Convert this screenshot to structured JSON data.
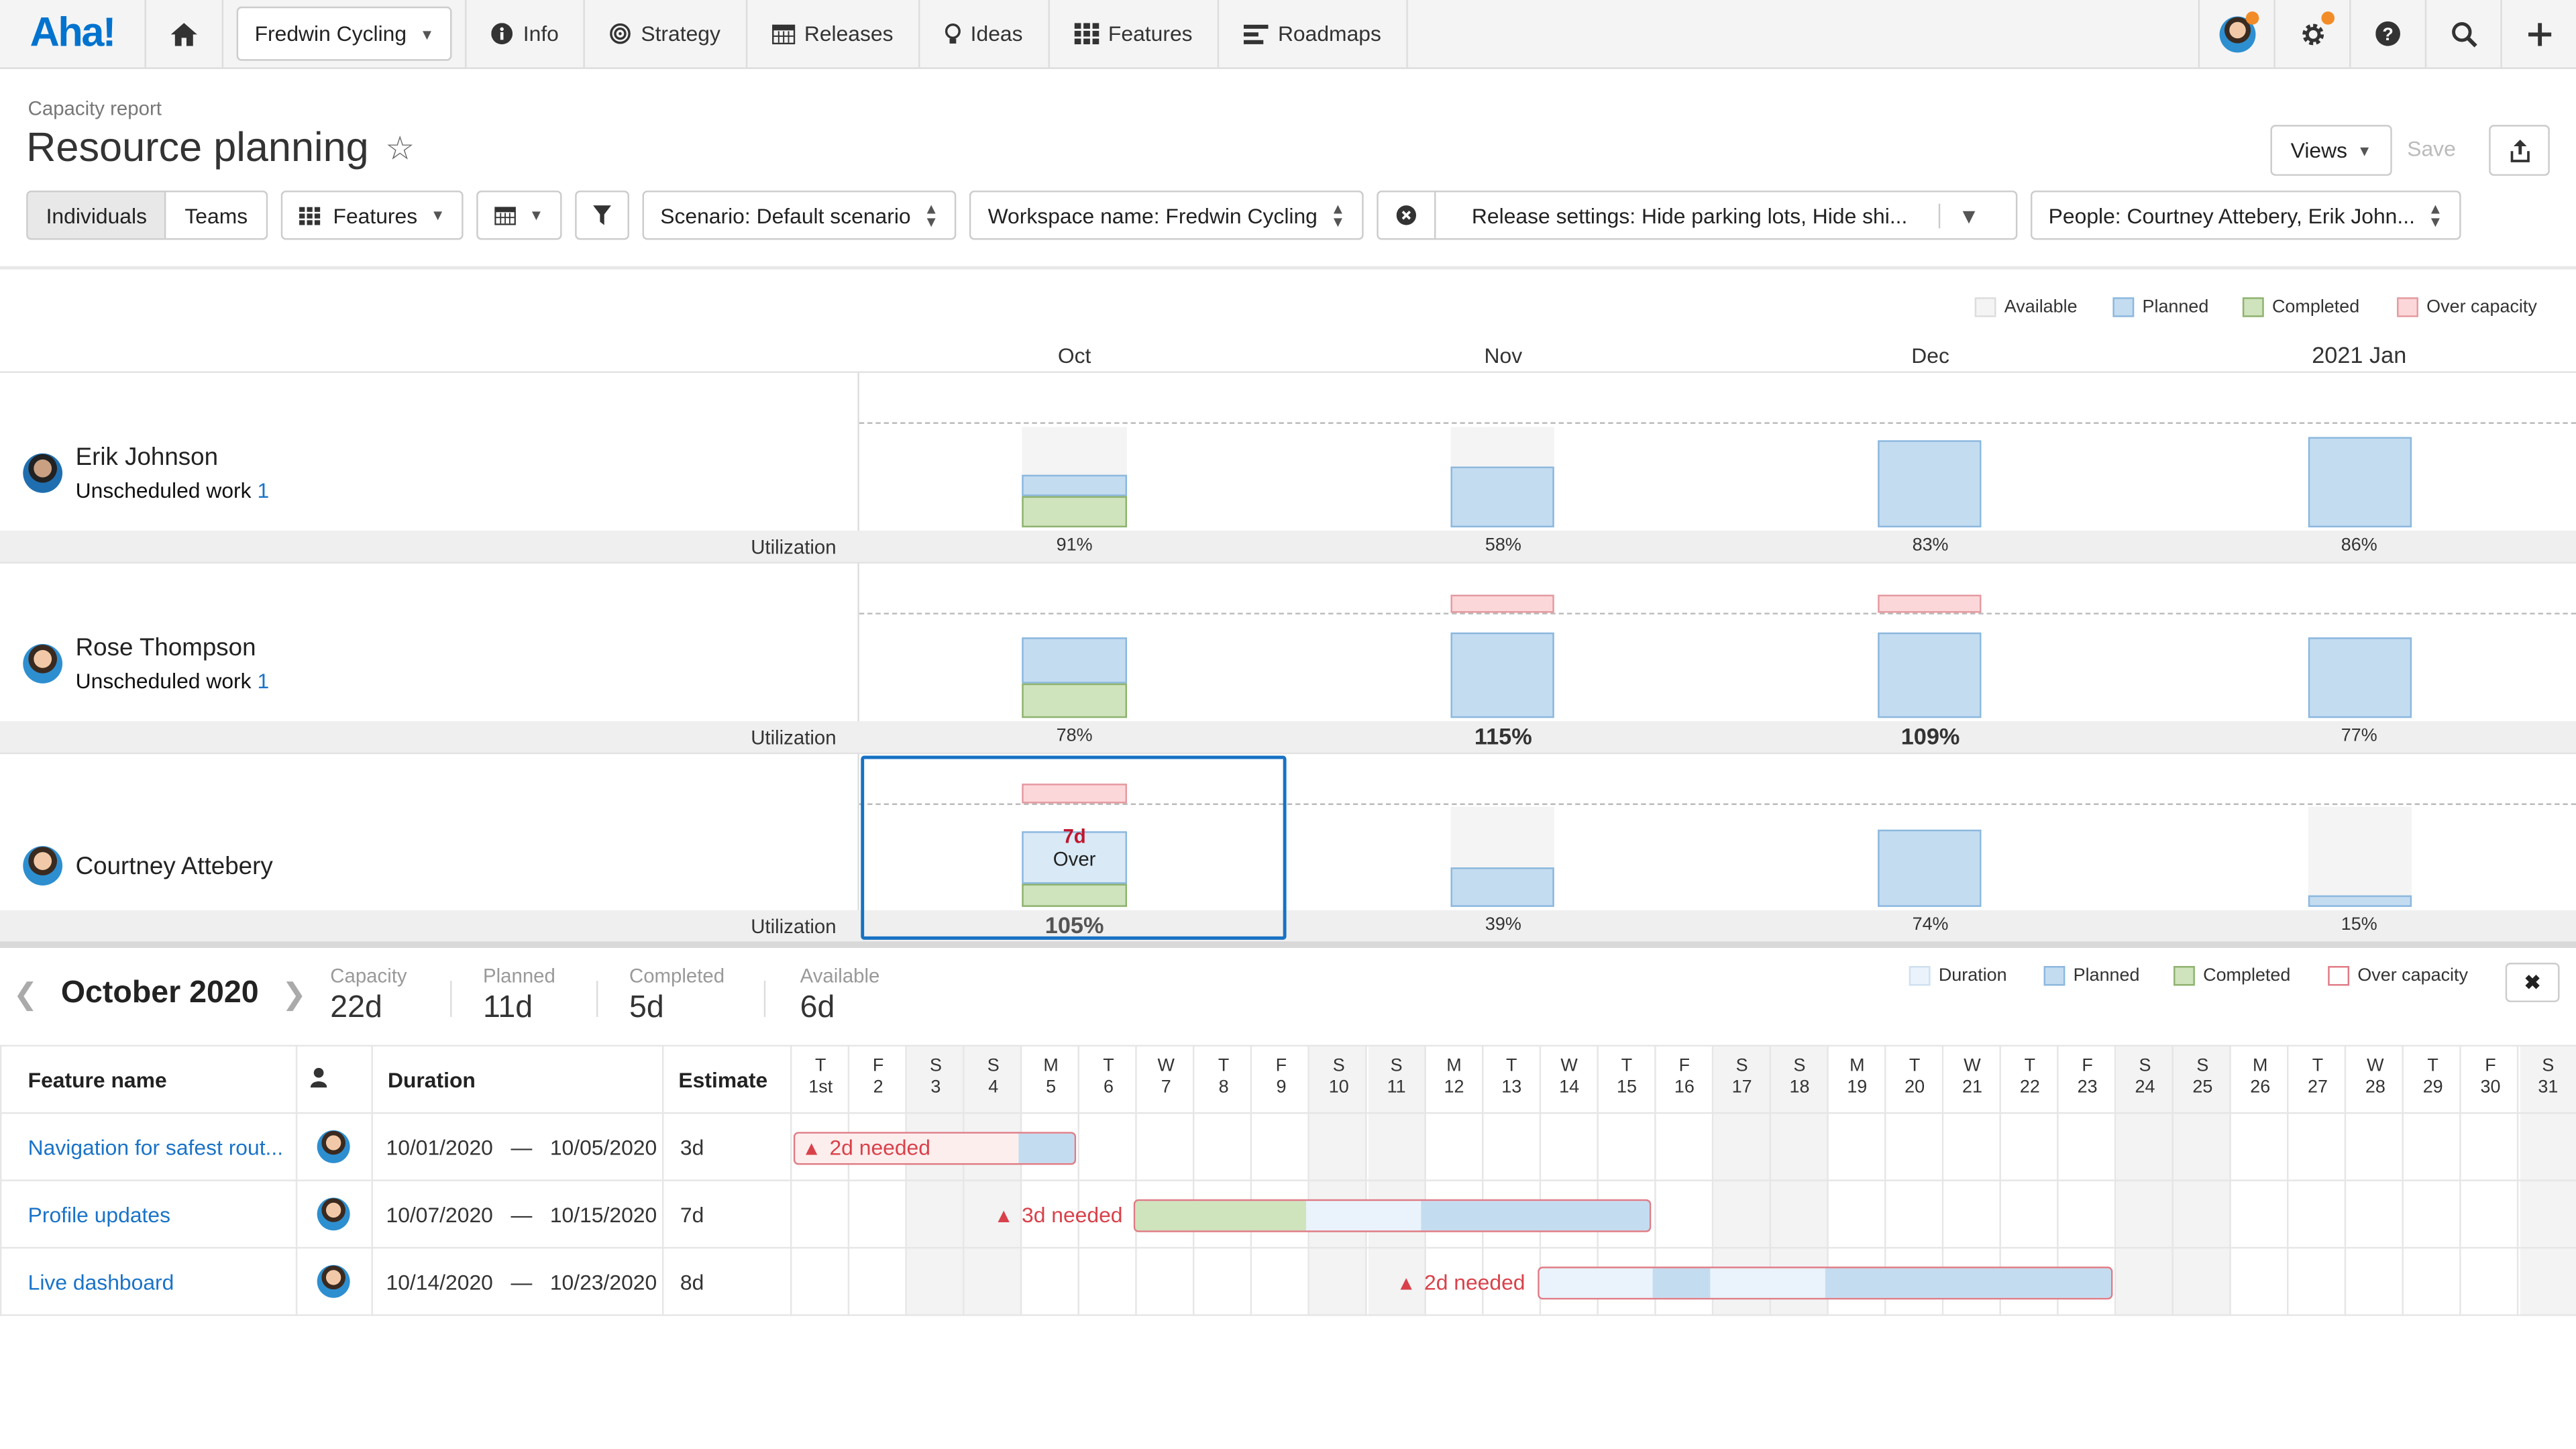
{
  "nav": {
    "logo": "Aha!",
    "workspace": "Fredwin Cycling",
    "items": [
      "Info",
      "Strategy",
      "Releases",
      "Ideas",
      "Features",
      "Roadmaps"
    ]
  },
  "page": {
    "breadcrumb": "Capacity report",
    "title": "Resource planning",
    "views_label": "Views",
    "save_label": "Save"
  },
  "filters": {
    "individuals": "Individuals",
    "teams": "Teams",
    "features": "Features",
    "scenario": "Scenario: Default scenario",
    "workspace": "Workspace name: Fredwin Cycling",
    "release": "Release settings: Hide parking lots, Hide shi...",
    "people": "People: Courtney Attebery, Erik John..."
  },
  "legend_top": {
    "available": "Available",
    "planned": "Planned",
    "completed": "Completed",
    "over": "Over capacity"
  },
  "months": [
    "Oct",
    "Nov",
    "Dec",
    "2021 Jan"
  ],
  "utilization_label": "Utilization",
  "unscheduled_label": "Unscheduled work",
  "people": [
    {
      "name": "Erik Johnson",
      "unscheduled": "1",
      "util": [
        "91%",
        "58%",
        "83%",
        "86%"
      ]
    },
    {
      "name": "Rose Thompson",
      "unscheduled": "1",
      "util": [
        "78%",
        "115%",
        "109%",
        "77%"
      ]
    },
    {
      "name": "Courtney Attebery",
      "util": [
        "105%",
        "39%",
        "74%",
        "15%"
      ]
    }
  ],
  "over_tooltip": {
    "days": "7d",
    "label": "Over"
  },
  "bottom": {
    "month": "October 2020",
    "stats": [
      {
        "label": "Capacity",
        "value": "22d"
      },
      {
        "label": "Planned",
        "value": "11d"
      },
      {
        "label": "Completed",
        "value": "5d"
      },
      {
        "label": "Available",
        "value": "6d"
      }
    ],
    "legend": {
      "duration": "Duration",
      "planned": "Planned",
      "completed": "Completed",
      "over": "Over capacity"
    },
    "headers": {
      "feature": "Feature name",
      "duration": "Duration",
      "estimate": "Estimate"
    },
    "days": [
      {
        "d": "T",
        "n": "1st"
      },
      {
        "d": "F",
        "n": "2"
      },
      {
        "d": "S",
        "n": "3"
      },
      {
        "d": "S",
        "n": "4"
      },
      {
        "d": "M",
        "n": "5"
      },
      {
        "d": "T",
        "n": "6"
      },
      {
        "d": "W",
        "n": "7"
      },
      {
        "d": "T",
        "n": "8"
      },
      {
        "d": "F",
        "n": "9"
      },
      {
        "d": "S",
        "n": "10"
      },
      {
        "d": "S",
        "n": "11"
      },
      {
        "d": "M",
        "n": "12"
      },
      {
        "d": "T",
        "n": "13"
      },
      {
        "d": "W",
        "n": "14"
      },
      {
        "d": "T",
        "n": "15"
      },
      {
        "d": "F",
        "n": "16"
      },
      {
        "d": "S",
        "n": "17"
      },
      {
        "d": "S",
        "n": "18"
      },
      {
        "d": "M",
        "n": "19"
      },
      {
        "d": "T",
        "n": "20"
      },
      {
        "d": "W",
        "n": "21"
      },
      {
        "d": "T",
        "n": "22"
      },
      {
        "d": "F",
        "n": "23"
      },
      {
        "d": "S",
        "n": "24"
      },
      {
        "d": "S",
        "n": "25"
      },
      {
        "d": "M",
        "n": "26"
      },
      {
        "d": "T",
        "n": "27"
      },
      {
        "d": "W",
        "n": "28"
      },
      {
        "d": "T",
        "n": "29"
      },
      {
        "d": "F",
        "n": "30"
      },
      {
        "d": "S",
        "n": "31"
      }
    ],
    "features": [
      {
        "name": "Navigation for safest rout...",
        "start": "10/01/2020",
        "sep": "—",
        "end": "10/05/2020",
        "estimate": "3d",
        "needed": "2d needed"
      },
      {
        "name": "Profile updates",
        "start": "10/07/2020",
        "sep": "—",
        "end": "10/15/2020",
        "estimate": "7d",
        "needed": "3d needed"
      },
      {
        "name": "Live dashboard",
        "start": "10/14/2020",
        "sep": "—",
        "end": "10/23/2020",
        "estimate": "8d",
        "needed": "2d needed"
      }
    ]
  },
  "colors": {
    "accent": "#0073cf",
    "planned": "#c4dcf0",
    "completed": "#cfe3bd",
    "over": "#fcd7d9",
    "warning": "#d9414a"
  }
}
